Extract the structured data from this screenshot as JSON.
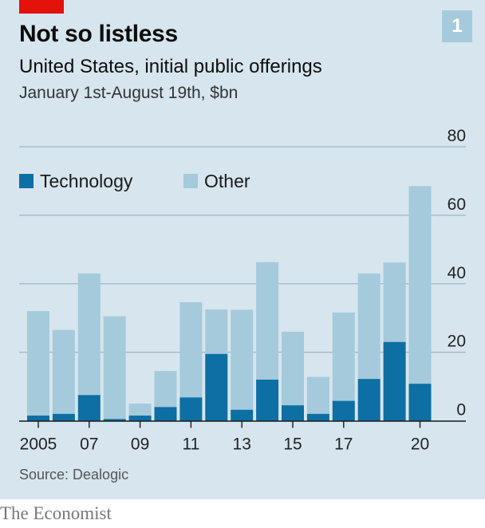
{
  "header": {
    "title": "Not so listless",
    "subtitle": "United States, initial public offerings",
    "unit_line": "January 1st-August 19th, $bn",
    "badge": "1"
  },
  "footer": {
    "source": "Source: Dealogic",
    "logo": "The Economist"
  },
  "colors": {
    "technology": "#0d6fa3",
    "other": "#a5cadb",
    "background": "#d6e5ee",
    "accent": "#e3120b"
  },
  "chart_data": {
    "type": "bar",
    "stacked": true,
    "categories": [
      "2005",
      "2006",
      "2007",
      "2008",
      "2009",
      "2010",
      "2011",
      "2012",
      "2013",
      "2014",
      "2015",
      "2016",
      "2017",
      "2018",
      "2019",
      "2020"
    ],
    "x_tick_labels": [
      {
        "category": "2005",
        "label": "2005"
      },
      {
        "category": "2007",
        "label": "07"
      },
      {
        "category": "2009",
        "label": "09"
      },
      {
        "category": "2011",
        "label": "11"
      },
      {
        "category": "2013",
        "label": "13"
      },
      {
        "category": "2015",
        "label": "15"
      },
      {
        "category": "2017",
        "label": "17"
      },
      {
        "category": "2020",
        "label": "20"
      }
    ],
    "series": [
      {
        "name": "Technology",
        "values": [
          1.5,
          2.0,
          7.5,
          0.5,
          1.5,
          4.0,
          6.8,
          19.5,
          3.2,
          12.0,
          4.5,
          2.0,
          5.8,
          12.2,
          23.0,
          10.8
        ]
      },
      {
        "name": "Other",
        "values": [
          30.5,
          24.5,
          35.5,
          30.0,
          3.5,
          10.5,
          27.8,
          13.0,
          29.2,
          34.3,
          21.5,
          10.8,
          25.8,
          30.8,
          23.2,
          57.7
        ]
      }
    ],
    "ylim": [
      0,
      80
    ],
    "yticks": [
      0,
      20,
      40,
      60,
      80
    ],
    "y_axis_side": "right",
    "legend_position": "top-left",
    "grid": true
  }
}
